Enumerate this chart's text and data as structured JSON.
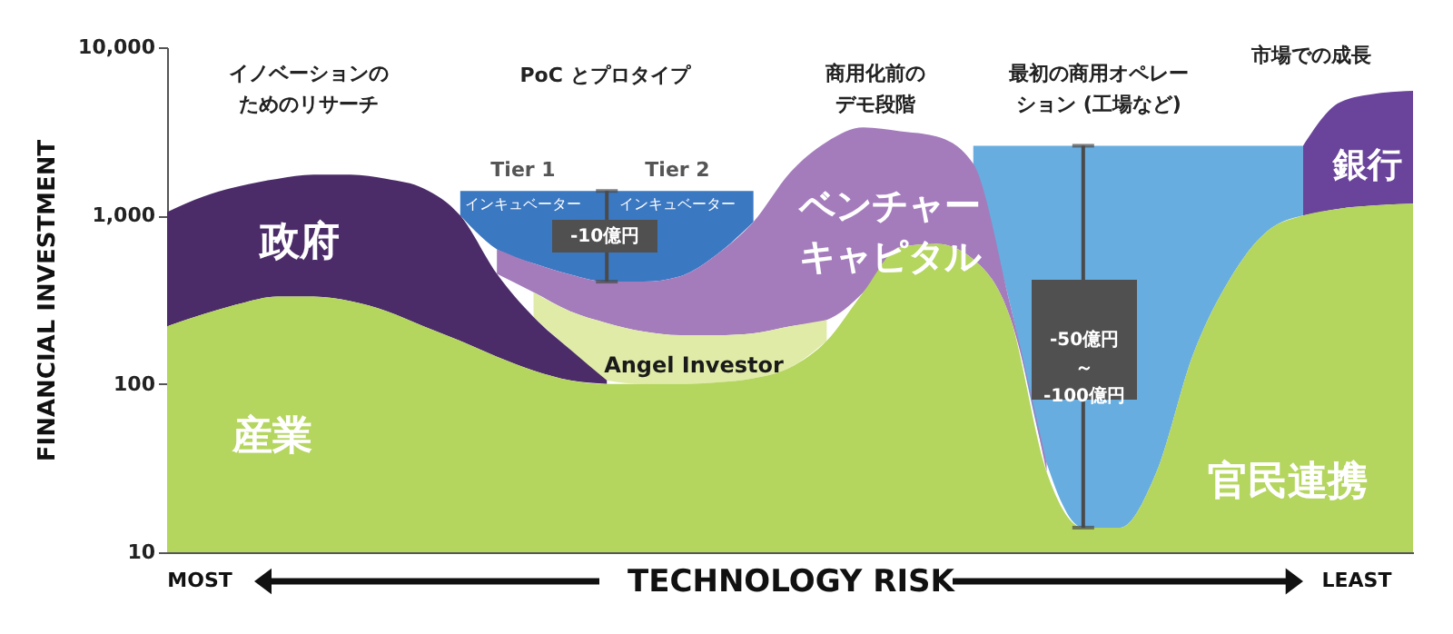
{
  "chart_data": {
    "type": "area",
    "ylabel": "FINANCIAL INVESTMENT",
    "xlabel": "TECHNOLOGY RISK",
    "log": true,
    "ylim": [
      10,
      10000
    ],
    "yticks": [
      10,
      100,
      {
        "value": 1000,
        "label": "1,000"
      },
      {
        "value": 10000,
        "label": "10,000"
      }
    ],
    "categories": [
      null,
      null,
      null,
      null,
      null,
      null,
      null,
      null,
      null,
      null,
      null,
      null,
      null,
      null,
      null,
      null,
      null,
      null,
      null,
      null,
      null,
      null,
      null,
      null,
      null,
      null,
      null,
      null,
      null,
      null,
      null,
      null,
      null,
      null,
      null
    ],
    "series": [
      {
        "color": "#3b78c2",
        "values": [
          null,
          null,
          null,
          null,
          null,
          null,
          null,
          null,
          1400,
          1400,
          1400,
          1400,
          1400,
          1400,
          1400,
          1400,
          1400,
          null,
          null,
          null,
          null,
          null,
          null,
          null,
          null,
          null,
          null,
          null,
          null,
          null,
          null,
          null,
          null,
          null,
          null
        ]
      },
      {
        "name": "官民連携",
        "color": "#68ade0",
        "values": [
          null,
          null,
          null,
          null,
          null,
          null,
          null,
          null,
          null,
          null,
          null,
          null,
          null,
          null,
          null,
          null,
          null,
          null,
          null,
          null,
          null,
          null,
          2600,
          2600,
          2600,
          2600,
          2600,
          2600,
          2600,
          2600,
          2600,
          2600,
          null,
          null,
          null
        ]
      },
      {
        "name": "ベンチャーキャピタル",
        "color": "#a47cbc",
        "values": [
          null,
          null,
          null,
          null,
          null,
          null,
          null,
          null,
          null,
          630,
          519,
          447,
          405,
          405,
          436,
          587,
          918,
          1800,
          2740,
          3340,
          3170,
          2950,
          2030,
          300,
          34,
          null,
          null,
          null,
          null,
          null,
          null,
          null,
          null,
          null,
          null
        ]
      },
      {
        "name": "銀行",
        "color": "#6a449a",
        "values": [
          null,
          null,
          null,
          null,
          null,
          null,
          null,
          null,
          null,
          null,
          null,
          null,
          null,
          null,
          null,
          null,
          null,
          null,
          null,
          null,
          null,
          null,
          null,
          null,
          null,
          null,
          null,
          null,
          null,
          null,
          null,
          2600,
          4700,
          5300,
          5500
        ]
      },
      {
        "name": "Angel Investor",
        "color": "#e0eba8",
        "values": [
          null,
          null,
          null,
          null,
          null,
          null,
          null,
          null,
          null,
          null,
          350,
          270,
          230,
          205,
          195,
          195,
          200,
          220,
          240,
          null,
          null,
          null,
          null,
          null,
          null,
          null,
          null,
          null,
          null,
          null,
          null,
          null,
          null,
          null,
          null
        ]
      },
      {
        "name": "政府",
        "color": "#4b2c69",
        "values": [
          1050,
          1300,
          1500,
          1650,
          1750,
          1750,
          1650,
          1450,
          1000,
          450,
          250,
          160,
          105,
          null,
          null,
          null,
          null,
          null,
          null,
          null,
          null,
          null,
          null,
          null,
          null,
          null,
          null,
          null,
          null,
          null,
          null,
          null,
          null,
          null,
          null
        ]
      },
      {
        "name": "産業",
        "color": "#b4d55e",
        "values": [
          220,
          260,
          300,
          330,
          330,
          310,
          270,
          220,
          180,
          145,
          120,
          105,
          100,
          100,
          100,
          102,
          108,
          125,
          180,
          350,
          650,
          680,
          550,
          250,
          30,
          14,
          14,
          30,
          150,
          420,
          800,
          1000,
          1100,
          1150,
          1175
        ]
      }
    ],
    "annotations": [
      "Tier 1",
      "インキュベーター",
      "Tier 2",
      "インキュベーター",
      "-10億円",
      "-50億円～-100億円",
      "MOST",
      "LEAST",
      "イノベーションのためのリサーチ",
      "PoC とプロタイプ",
      "商用化前のデモ段階",
      "最初の商用オペレーション (工場など)",
      "市場での成長"
    ]
  }
}
